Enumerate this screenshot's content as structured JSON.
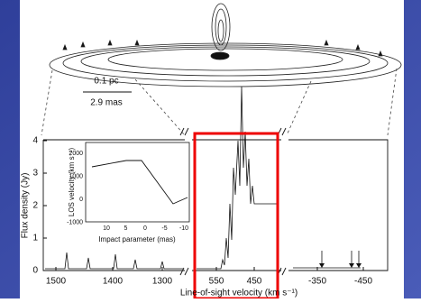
{
  "scale_bar": {
    "top": "0.1 pc",
    "bottom": "2.9 mas"
  },
  "spectrum": {
    "y_label": "Flux density (Jy)",
    "y_ticks": [
      "0",
      "1",
      "2",
      "3",
      "4"
    ],
    "x_label": "Line-of-sight velocity (km s⁻¹)",
    "left_x_ticks": [
      "1500",
      "1400",
      "1300"
    ],
    "middle_x_ticks": [
      "550",
      "450"
    ],
    "right_x_ticks": [
      "-350",
      "-450"
    ]
  },
  "inset": {
    "y_label": "LOS velocity (km s⁻¹)",
    "y_ticks": [
      "2000",
      "1000",
      "0",
      "-1000"
    ],
    "x_label": "Impact parameter (mas)",
    "x_ticks": [
      "10",
      "5",
      "0",
      "-5",
      "-10"
    ]
  }
}
